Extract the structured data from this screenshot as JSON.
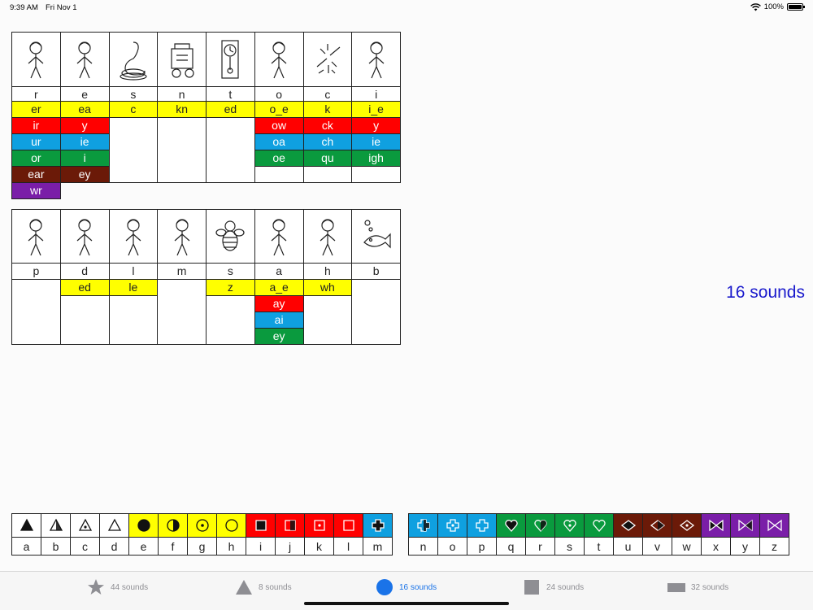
{
  "status_bar": {
    "time": "9:39 AM",
    "date": "Fri Nov 1",
    "battery_text": "100%"
  },
  "right_label": "16 sounds",
  "colors": {
    "yellow": "#ffff00",
    "red": "#ff0000",
    "blue": "#0fa0e0",
    "green": "#0a9a3e",
    "brown": "#6b1a08",
    "purple": "#7a1ea8",
    "active_tab": "#1a73e8",
    "inactive_tab": "#8e8e93",
    "label_blue": "#1a1acc"
  },
  "top_table": {
    "columns": [
      {
        "picture": "dog-icon",
        "letter": "r",
        "graphemes": [
          {
            "text": "er",
            "color": "yellow"
          },
          {
            "text": "ir",
            "color": "red"
          },
          {
            "text": "ur",
            "color": "blue"
          },
          {
            "text": "or",
            "color": "green"
          },
          {
            "text": "ear",
            "color": "brown"
          },
          {
            "text": "wr",
            "color": "purple"
          }
        ]
      },
      {
        "picture": "boy-with-toy-icon",
        "letter": "e",
        "graphemes": [
          {
            "text": "ea",
            "color": "yellow"
          },
          {
            "text": "y",
            "color": "red"
          },
          {
            "text": "ie",
            "color": "blue"
          },
          {
            "text": "i",
            "color": "green"
          },
          {
            "text": "ey",
            "color": "brown"
          }
        ]
      },
      {
        "picture": "snake-icon",
        "letter": "s",
        "graphemes": [
          {
            "text": "c",
            "color": "yellow"
          }
        ]
      },
      {
        "picture": "machine-icon",
        "letter": "n",
        "graphemes": [
          {
            "text": "kn",
            "color": "yellow"
          }
        ]
      },
      {
        "picture": "clock-icon",
        "letter": "t",
        "graphemes": [
          {
            "text": "ed",
            "color": "yellow"
          }
        ]
      },
      {
        "picture": "girl-surprised-icon",
        "letter": "o",
        "graphemes": [
          {
            "text": "o_e",
            "color": "yellow"
          },
          {
            "text": "ow",
            "color": "red"
          },
          {
            "text": "oa",
            "color": "blue"
          },
          {
            "text": "oe",
            "color": "green"
          }
        ]
      },
      {
        "picture": "broken-stick-icon",
        "letter": "c",
        "graphemes": [
          {
            "text": "k",
            "color": "yellow"
          },
          {
            "text": "ck",
            "color": "red"
          },
          {
            "text": "ch",
            "color": "blue"
          },
          {
            "text": "qu",
            "color": "green"
          }
        ]
      },
      {
        "picture": "old-man-icon",
        "letter": "i",
        "graphemes": [
          {
            "text": "i_e",
            "color": "yellow"
          },
          {
            "text": "y",
            "color": "red"
          },
          {
            "text": "ie",
            "color": "blue"
          },
          {
            "text": "igh",
            "color": "green"
          }
        ]
      }
    ]
  },
  "bottom_table": {
    "columns": [
      {
        "picture": "boy-with-cap-icon",
        "letter": "p",
        "graphemes": []
      },
      {
        "picture": "boy-with-ball-icon",
        "letter": "d",
        "graphemes": [
          {
            "text": "ed",
            "color": "yellow"
          }
        ]
      },
      {
        "picture": "boy-on-phone-icon",
        "letter": "l",
        "graphemes": [
          {
            "text": "le",
            "color": "yellow"
          }
        ]
      },
      {
        "picture": "woman-eating-icon",
        "letter": "m",
        "graphemes": []
      },
      {
        "picture": "bee-icon",
        "letter": "s",
        "graphemes": [
          {
            "text": "z",
            "color": "yellow"
          }
        ]
      },
      {
        "picture": "man-talking-icon",
        "letter": "a",
        "graphemes": [
          {
            "text": "a_e",
            "color": "yellow"
          },
          {
            "text": "ay",
            "color": "red"
          },
          {
            "text": "ai",
            "color": "blue"
          },
          {
            "text": "ey",
            "color": "green"
          }
        ]
      },
      {
        "picture": "boy-running-icon",
        "letter": "h",
        "graphemes": [
          {
            "text": "wh",
            "color": "yellow"
          }
        ]
      },
      {
        "picture": "fish-icon",
        "letter": "b",
        "graphemes": []
      }
    ]
  },
  "symbol_strip_left": [
    {
      "letter": "a",
      "shape": "triangle",
      "fill": "full",
      "bg": "#ffffff"
    },
    {
      "letter": "b",
      "shape": "triangle",
      "fill": "half",
      "bg": "#ffffff"
    },
    {
      "letter": "c",
      "shape": "triangle",
      "fill": "dot",
      "bg": "#ffffff"
    },
    {
      "letter": "d",
      "shape": "triangle",
      "fill": "empty",
      "bg": "#ffffff"
    },
    {
      "letter": "e",
      "shape": "circle",
      "fill": "full",
      "bg": "#ffff00"
    },
    {
      "letter": "f",
      "shape": "circle",
      "fill": "half",
      "bg": "#ffff00"
    },
    {
      "letter": "g",
      "shape": "circle",
      "fill": "dot",
      "bg": "#ffff00"
    },
    {
      "letter": "h",
      "shape": "circle",
      "fill": "empty",
      "bg": "#ffff00"
    },
    {
      "letter": "i",
      "shape": "square",
      "fill": "full",
      "bg": "#ff0000"
    },
    {
      "letter": "j",
      "shape": "square",
      "fill": "half",
      "bg": "#ff0000"
    },
    {
      "letter": "k",
      "shape": "square",
      "fill": "dot",
      "bg": "#ff0000"
    },
    {
      "letter": "l",
      "shape": "square",
      "fill": "empty",
      "bg": "#ff0000"
    },
    {
      "letter": "m",
      "shape": "cross",
      "fill": "full",
      "bg": "#0fa0e0"
    }
  ],
  "symbol_strip_right": [
    {
      "letter": "n",
      "shape": "cross",
      "fill": "half",
      "bg": "#0fa0e0"
    },
    {
      "letter": "o",
      "shape": "cross",
      "fill": "dot",
      "bg": "#0fa0e0"
    },
    {
      "letter": "p",
      "shape": "cross",
      "fill": "empty",
      "bg": "#0fa0e0"
    },
    {
      "letter": "q",
      "shape": "heart",
      "fill": "full",
      "bg": "#0a9a3e"
    },
    {
      "letter": "r",
      "shape": "heart",
      "fill": "half",
      "bg": "#0a9a3e"
    },
    {
      "letter": "s",
      "shape": "heart",
      "fill": "dot",
      "bg": "#0a9a3e"
    },
    {
      "letter": "t",
      "shape": "heart",
      "fill": "empty",
      "bg": "#0a9a3e"
    },
    {
      "letter": "u",
      "shape": "diamond",
      "fill": "full",
      "bg": "#6b1a08"
    },
    {
      "letter": "v",
      "shape": "diamond",
      "fill": "half",
      "bg": "#6b1a08"
    },
    {
      "letter": "w",
      "shape": "diamond",
      "fill": "dot",
      "bg": "#6b1a08"
    },
    {
      "letter": "x",
      "shape": "bowtie",
      "fill": "full",
      "bg": "#7a1ea8"
    },
    {
      "letter": "y",
      "shape": "bowtie",
      "fill": "half",
      "bg": "#7a1ea8"
    },
    {
      "letter": "z",
      "shape": "bowtie",
      "fill": "empty",
      "bg": "#7a1ea8"
    }
  ],
  "tabs": [
    {
      "label": "44 sounds",
      "icon": "star-icon",
      "active": false
    },
    {
      "label": "8 sounds",
      "icon": "triangle-icon",
      "active": false
    },
    {
      "label": "16 sounds",
      "icon": "circle-icon",
      "active": true
    },
    {
      "label": "24 sounds",
      "icon": "square-icon",
      "active": false
    },
    {
      "label": "32 sounds",
      "icon": "rectangle-icon",
      "active": false
    }
  ]
}
